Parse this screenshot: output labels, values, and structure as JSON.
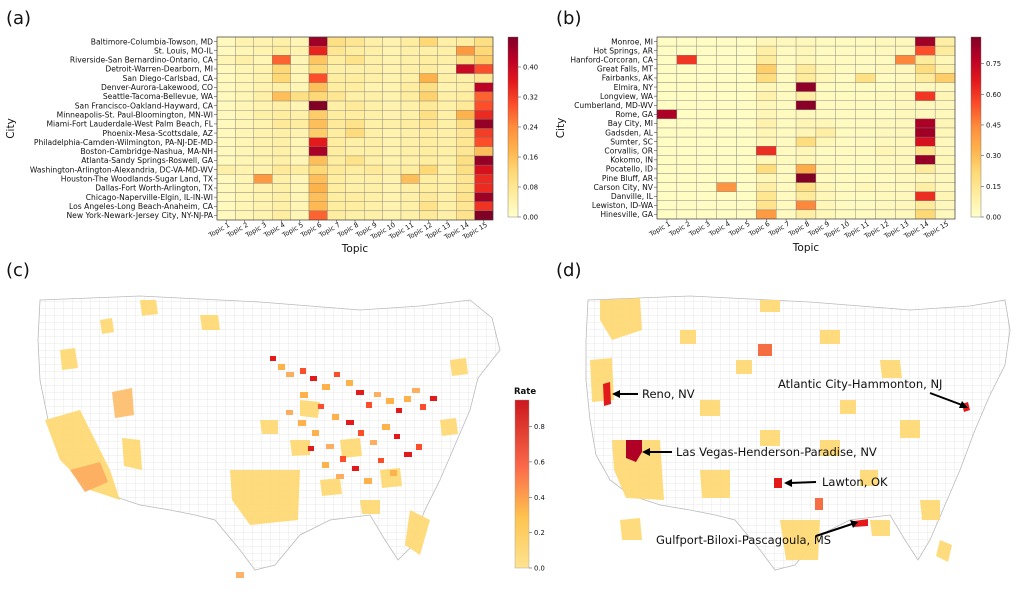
{
  "panels": {
    "a": "(a)",
    "b": "(b)",
    "c": "(c)",
    "d": "(d)"
  },
  "colors": {
    "low": "#ffffcc",
    "mid": "#fd8d3c",
    "high": "#800026",
    "map_border": "#cccccc",
    "map_bg": "#ffffff"
  },
  "chart_data": [
    {
      "type": "heatmap",
      "panel": "(a)",
      "xlabel": "Topic",
      "ylabel": "City",
      "x_categories": [
        "Topic 1",
        "Topic 2",
        "Topic 3",
        "Topic 4",
        "Topic 5",
        "Topic 6",
        "Topic 7",
        "Topic 8",
        "Topic 9",
        "Topic 10",
        "Topic 11",
        "Topic 12",
        "Topic 13",
        "Topic 14",
        "Topic 15"
      ],
      "y_categories": [
        "Baltimore-Columbia-Towson, MD",
        "St. Louis, MO-IL",
        "Riverside-San Bernardino-Ontario, CA",
        "Detroit-Warren-Dearborn, MI",
        "San Diego-Carlsbad, CA",
        "Denver-Aurora-Lakewood, CO",
        "Seattle-Tacoma-Bellevue, WA",
        "San Francisco-Oakland-Hayward, CA",
        "Minneapolis-St. Paul-Bloomington, MN-WI",
        "Miami-Fort Lauderdale-West Palm Beach, FL",
        "Phoenix-Mesa-Scottsdale, AZ",
        "Philadelphia-Camden-Wilmington, PA-NJ-DE-MD",
        "Boston-Cambridge-Nashua, MA-NH",
        "Atlanta-Sandy Springs-Roswell, GA",
        "Washington-Arlington-Alexandria, DC-VA-MD-WV",
        "Houston-The Woodlands-Sugar Land, TX",
        "Dallas-Fort Worth-Arlington, TX",
        "Chicago-Naperville-Elgin, IL-IN-WI",
        "Los Angeles-Long Beach-Anaheim, CA",
        "New York-Newark-Jersey City, NY-NJ-PA"
      ],
      "values": [
        [
          0.02,
          0.04,
          0.04,
          0.05,
          0.03,
          0.45,
          0.1,
          0.08,
          0.05,
          0.04,
          0.06,
          0.12,
          0.05,
          0.06,
          0.1
        ],
        [
          0.02,
          0.03,
          0.04,
          0.06,
          0.04,
          0.35,
          0.08,
          0.06,
          0.05,
          0.04,
          0.05,
          0.05,
          0.05,
          0.22,
          0.12
        ],
        [
          0.03,
          0.05,
          0.03,
          0.28,
          0.03,
          0.15,
          0.06,
          0.09,
          0.05,
          0.04,
          0.05,
          0.06,
          0.05,
          0.1,
          0.14
        ],
        [
          0.02,
          0.03,
          0.04,
          0.12,
          0.03,
          0.12,
          0.05,
          0.05,
          0.05,
          0.04,
          0.05,
          0.06,
          0.04,
          0.4,
          0.3
        ],
        [
          0.02,
          0.03,
          0.04,
          0.12,
          0.03,
          0.3,
          0.06,
          0.06,
          0.05,
          0.04,
          0.05,
          0.18,
          0.05,
          0.05,
          0.08
        ],
        [
          0.02,
          0.03,
          0.04,
          0.05,
          0.03,
          0.16,
          0.06,
          0.06,
          0.04,
          0.04,
          0.06,
          0.1,
          0.04,
          0.05,
          0.42
        ],
        [
          0.02,
          0.03,
          0.05,
          0.16,
          0.1,
          0.12,
          0.08,
          0.05,
          0.05,
          0.04,
          0.06,
          0.13,
          0.05,
          0.06,
          0.28
        ],
        [
          0.02,
          0.03,
          0.04,
          0.05,
          0.03,
          0.48,
          0.05,
          0.07,
          0.05,
          0.04,
          0.05,
          0.07,
          0.05,
          0.07,
          0.3
        ],
        [
          0.02,
          0.03,
          0.05,
          0.06,
          0.05,
          0.14,
          0.06,
          0.06,
          0.05,
          0.04,
          0.05,
          0.1,
          0.05,
          0.18,
          0.34
        ],
        [
          0.02,
          0.03,
          0.04,
          0.07,
          0.06,
          0.16,
          0.07,
          0.09,
          0.05,
          0.05,
          0.06,
          0.08,
          0.05,
          0.1,
          0.46
        ],
        [
          0.02,
          0.03,
          0.04,
          0.05,
          0.04,
          0.14,
          0.06,
          0.11,
          0.05,
          0.04,
          0.05,
          0.06,
          0.05,
          0.08,
          0.32
        ],
        [
          0.02,
          0.03,
          0.04,
          0.05,
          0.03,
          0.36,
          0.06,
          0.05,
          0.05,
          0.04,
          0.05,
          0.06,
          0.05,
          0.08,
          0.3
        ],
        [
          0.02,
          0.03,
          0.04,
          0.05,
          0.03,
          0.44,
          0.06,
          0.05,
          0.05,
          0.04,
          0.05,
          0.06,
          0.05,
          0.08,
          0.16
        ],
        [
          0.02,
          0.03,
          0.04,
          0.05,
          0.03,
          0.16,
          0.06,
          0.09,
          0.05,
          0.04,
          0.05,
          0.06,
          0.05,
          0.1,
          0.46
        ],
        [
          0.05,
          0.04,
          0.04,
          0.07,
          0.06,
          0.12,
          0.07,
          0.06,
          0.07,
          0.05,
          0.06,
          0.12,
          0.05,
          0.1,
          0.38
        ],
        [
          0.02,
          0.03,
          0.22,
          0.05,
          0.03,
          0.16,
          0.06,
          0.05,
          0.05,
          0.04,
          0.16,
          0.06,
          0.05,
          0.08,
          0.34
        ],
        [
          0.02,
          0.03,
          0.04,
          0.05,
          0.03,
          0.18,
          0.06,
          0.05,
          0.05,
          0.04,
          0.05,
          0.06,
          0.05,
          0.08,
          0.34
        ],
        [
          0.02,
          0.03,
          0.04,
          0.05,
          0.03,
          0.16,
          0.06,
          0.06,
          0.05,
          0.04,
          0.05,
          0.07,
          0.05,
          0.09,
          0.45
        ],
        [
          0.02,
          0.03,
          0.04,
          0.05,
          0.03,
          0.17,
          0.06,
          0.06,
          0.05,
          0.04,
          0.05,
          0.09,
          0.05,
          0.08,
          0.33
        ],
        [
          0.02,
          0.03,
          0.04,
          0.06,
          0.03,
          0.28,
          0.06,
          0.05,
          0.05,
          0.04,
          0.05,
          0.07,
          0.05,
          0.09,
          0.48
        ]
      ],
      "vmin": 0.0,
      "vmax": 0.48,
      "colorbar_ticks": [
        "0.00",
        "0.08",
        "0.16",
        "0.24",
        "0.32",
        "0.40"
      ],
      "colorbar_tick_values": [
        0.0,
        0.08,
        0.16,
        0.24,
        0.32,
        0.4
      ]
    },
    {
      "type": "heatmap",
      "panel": "(b)",
      "xlabel": "Topic",
      "ylabel": "City",
      "x_categories": [
        "Topic 1",
        "Topic 2",
        "Topic 3",
        "Topic 4",
        "Topic 5",
        "Topic 6",
        "Topic 7",
        "Topic 8",
        "Topic 9",
        "Topic 10",
        "Topic 11",
        "Topic 12",
        "Topic 13",
        "Topic 14",
        "Topic 15"
      ],
      "y_categories": [
        "Monroe, MI",
        "Hot Springs, AR",
        "Hanford-Corcoran, CA",
        "Great Falls, MT",
        "Fairbanks, AK",
        "Elmira, NY",
        "Longview, WA",
        "Cumberland, MD-WV",
        "Rome, GA",
        "Bay City, MI",
        "Gadsden, AL",
        "Sumter, SC",
        "Corvallis, OR",
        "Kokomo, IN",
        "Pocatello, ID",
        "Pine Bluff, AR",
        "Carson City, NV",
        "Danville, IL",
        "Lewiston, ID-WA",
        "Hinesville, GA"
      ],
      "values": [
        [
          0.02,
          0.02,
          0.02,
          0.02,
          0.02,
          0.05,
          0.04,
          0.04,
          0.03,
          0.03,
          0.03,
          0.04,
          0.04,
          0.82,
          0.1
        ],
        [
          0.02,
          0.02,
          0.02,
          0.02,
          0.02,
          0.1,
          0.03,
          0.05,
          0.03,
          0.03,
          0.03,
          0.04,
          0.04,
          0.55,
          0.12
        ],
        [
          0.02,
          0.6,
          0.02,
          0.02,
          0.02,
          0.12,
          0.03,
          0.05,
          0.03,
          0.03,
          0.03,
          0.03,
          0.45,
          0.12,
          0.05
        ],
        [
          0.02,
          0.02,
          0.02,
          0.02,
          0.02,
          0.25,
          0.03,
          0.12,
          0.05,
          0.03,
          0.03,
          0.04,
          0.04,
          0.2,
          0.08
        ],
        [
          0.02,
          0.02,
          0.02,
          0.02,
          0.02,
          0.2,
          0.03,
          0.12,
          0.05,
          0.03,
          0.18,
          0.03,
          0.04,
          0.12,
          0.25
        ],
        [
          0.02,
          0.02,
          0.02,
          0.02,
          0.02,
          0.05,
          0.03,
          0.85,
          0.03,
          0.03,
          0.03,
          0.03,
          0.04,
          0.04,
          0.04
        ],
        [
          0.02,
          0.02,
          0.02,
          0.02,
          0.02,
          0.08,
          0.03,
          0.1,
          0.03,
          0.03,
          0.03,
          0.04,
          0.04,
          0.6,
          0.06
        ],
        [
          0.02,
          0.02,
          0.02,
          0.02,
          0.02,
          0.05,
          0.03,
          0.86,
          0.03,
          0.03,
          0.03,
          0.03,
          0.04,
          0.04,
          0.04
        ],
        [
          0.8,
          0.02,
          0.02,
          0.02,
          0.02,
          0.05,
          0.03,
          0.04,
          0.03,
          0.03,
          0.03,
          0.03,
          0.04,
          0.04,
          0.04
        ],
        [
          0.02,
          0.02,
          0.02,
          0.02,
          0.02,
          0.08,
          0.03,
          0.06,
          0.05,
          0.03,
          0.03,
          0.04,
          0.04,
          0.8,
          0.06
        ],
        [
          0.02,
          0.02,
          0.02,
          0.02,
          0.02,
          0.06,
          0.03,
          0.06,
          0.1,
          0.03,
          0.03,
          0.04,
          0.04,
          0.82,
          0.05
        ],
        [
          0.02,
          0.02,
          0.02,
          0.02,
          0.02,
          0.05,
          0.03,
          0.2,
          0.05,
          0.03,
          0.03,
          0.04,
          0.04,
          0.7,
          0.04
        ],
        [
          0.02,
          0.02,
          0.02,
          0.02,
          0.02,
          0.62,
          0.03,
          0.05,
          0.03,
          0.03,
          0.03,
          0.06,
          0.04,
          0.16,
          0.04
        ],
        [
          0.02,
          0.02,
          0.02,
          0.02,
          0.02,
          0.05,
          0.03,
          0.05,
          0.03,
          0.03,
          0.03,
          0.04,
          0.04,
          0.84,
          0.05
        ],
        [
          0.02,
          0.02,
          0.02,
          0.02,
          0.02,
          0.2,
          0.03,
          0.35,
          0.05,
          0.03,
          0.03,
          0.04,
          0.04,
          0.12,
          0.04
        ],
        [
          0.02,
          0.02,
          0.02,
          0.02,
          0.02,
          0.05,
          0.03,
          0.88,
          0.03,
          0.03,
          0.03,
          0.03,
          0.04,
          0.04,
          0.04
        ],
        [
          0.02,
          0.02,
          0.02,
          0.42,
          0.02,
          0.1,
          0.03,
          0.18,
          0.05,
          0.03,
          0.05,
          0.04,
          0.04,
          0.1,
          0.04
        ],
        [
          0.02,
          0.02,
          0.02,
          0.02,
          0.02,
          0.15,
          0.03,
          0.12,
          0.05,
          0.03,
          0.03,
          0.04,
          0.04,
          0.62,
          0.06
        ],
        [
          0.02,
          0.02,
          0.02,
          0.02,
          0.02,
          0.16,
          0.03,
          0.45,
          0.05,
          0.03,
          0.03,
          0.04,
          0.04,
          0.12,
          0.04
        ],
        [
          0.02,
          0.02,
          0.02,
          0.02,
          0.02,
          0.4,
          0.03,
          0.1,
          0.05,
          0.03,
          0.03,
          0.04,
          0.04,
          0.22,
          0.04
        ]
      ],
      "vmin": 0.0,
      "vmax": 0.88,
      "colorbar_ticks": [
        "0.00",
        "0.15",
        "0.30",
        "0.45",
        "0.60",
        "0.75"
      ],
      "colorbar_tick_values": [
        0.0,
        0.15,
        0.3,
        0.45,
        0.6,
        0.75
      ]
    },
    {
      "type": "choropleth",
      "panel": "(c)",
      "region": "Contiguous United States (counties)",
      "colorbar_title": "Rate",
      "colorbar_ticks": [
        "0.0",
        "0.2",
        "0.4",
        "0.6",
        "0.8"
      ],
      "colorbar_tick_values": [
        0.0,
        0.2,
        0.4,
        0.6,
        0.8
      ],
      "vmin": 0.0,
      "vmax": 0.95
    },
    {
      "type": "choropleth",
      "panel": "(d)",
      "region": "Contiguous United States (counties)",
      "annotations": [
        "Reno, NV",
        "Atlantic City-Hammonton, NJ",
        "Las Vegas-Henderson-Paradise, NV",
        "Lawton, OK",
        "Gulfport-Biloxi-Pascagoula, MS"
      ]
    }
  ]
}
